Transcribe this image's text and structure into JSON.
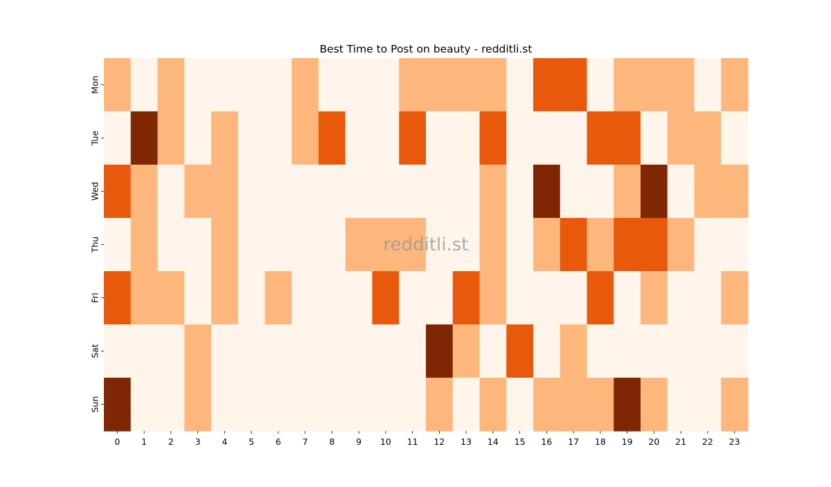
{
  "chart_data": {
    "type": "heatmap",
    "title": "Best Time to Post on beauty - redditli.st",
    "watermark": "redditli.st",
    "xlabel": "",
    "ylabel": "",
    "x_categories": [
      "0",
      "1",
      "2",
      "3",
      "4",
      "5",
      "6",
      "7",
      "8",
      "9",
      "10",
      "11",
      "12",
      "13",
      "14",
      "15",
      "16",
      "17",
      "18",
      "19",
      "20",
      "21",
      "22",
      "23"
    ],
    "y_categories": [
      "Mon",
      "Tue",
      "Wed",
      "Thu",
      "Fri",
      "Sat",
      "Sun"
    ],
    "levels": [
      [
        1,
        0,
        1,
        0,
        0,
        0,
        0,
        1,
        0,
        0,
        0,
        1,
        1,
        1,
        1,
        0,
        2,
        2,
        0,
        1,
        1,
        1,
        0,
        1
      ],
      [
        0,
        3,
        1,
        0,
        1,
        0,
        0,
        1,
        2,
        0,
        0,
        2,
        0,
        0,
        2,
        0,
        0,
        0,
        2,
        2,
        0,
        1,
        1,
        0
      ],
      [
        2,
        1,
        0,
        1,
        1,
        0,
        0,
        0,
        0,
        0,
        0,
        0,
        0,
        0,
        1,
        0,
        3,
        0,
        0,
        1,
        3,
        0,
        1,
        1
      ],
      [
        0,
        1,
        0,
        0,
        1,
        0,
        0,
        0,
        0,
        1,
        1,
        1,
        0,
        0,
        1,
        0,
        1,
        2,
        1,
        2,
        2,
        1,
        0,
        0
      ],
      [
        2,
        1,
        1,
        0,
        1,
        0,
        1,
        0,
        0,
        0,
        2,
        0,
        0,
        2,
        1,
        0,
        0,
        0,
        2,
        0,
        1,
        0,
        0,
        1
      ],
      [
        0,
        0,
        0,
        1,
        0,
        0,
        0,
        0,
        0,
        0,
        0,
        0,
        3,
        1,
        0,
        2,
        0,
        1,
        0,
        0,
        0,
        0,
        0,
        0
      ],
      [
        3,
        0,
        0,
        1,
        0,
        0,
        0,
        0,
        0,
        0,
        0,
        0,
        1,
        0,
        1,
        0,
        1,
        1,
        1,
        3,
        1,
        0,
        0,
        1
      ]
    ],
    "colorscale": [
      "#fff5eb",
      "#fdb77d",
      "#e8590c",
      "#7f2704"
    ],
    "colorbar": false,
    "grid": false
  }
}
